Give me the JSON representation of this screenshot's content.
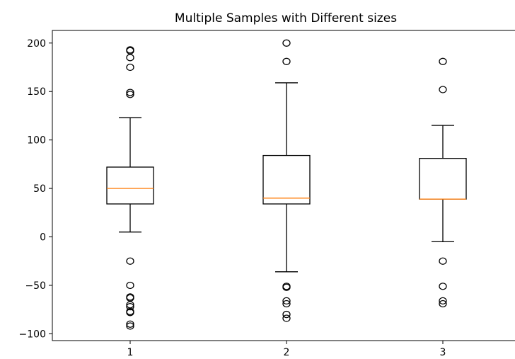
{
  "chart_data": {
    "type": "boxplot",
    "title": "Multiple Samples with Different sizes",
    "xlabel": "",
    "ylabel": "",
    "grid": false,
    "ylim": [
      -107,
      213
    ],
    "y_ticks": [
      200,
      150,
      100,
      50,
      0,
      -50,
      -100
    ],
    "y_tick_labels": [
      "200",
      "150",
      "100",
      "50",
      "0",
      "−50",
      "−100"
    ],
    "categories": [
      "1",
      "2",
      "3"
    ],
    "boxes": [
      {
        "label": "1",
        "whisker_low": 5,
        "q1": 34,
        "median": 50,
        "q3": 72,
        "whisker_high": 123,
        "fliers": [
          193,
          192,
          185,
          175,
          149,
          147,
          -25,
          -50,
          -62,
          -63,
          -70,
          -72,
          -77,
          -78,
          -90,
          -92
        ]
      },
      {
        "label": "2",
        "whisker_low": -36,
        "q1": 34,
        "median": 40,
        "q3": 84,
        "whisker_high": 159,
        "fliers": [
          200,
          181,
          -51,
          -52,
          -66,
          -69,
          -80,
          -84
        ]
      },
      {
        "label": "3",
        "whisker_low": -5,
        "q1": 39,
        "median": 39,
        "q3": 81,
        "whisker_high": 115,
        "fliers": [
          181,
          152,
          -25,
          -51,
          -66,
          -69
        ]
      }
    ],
    "colors": {
      "box": "#000000",
      "median": "#ff7f0e",
      "flier": "#000000",
      "background": "#ffffff"
    }
  }
}
